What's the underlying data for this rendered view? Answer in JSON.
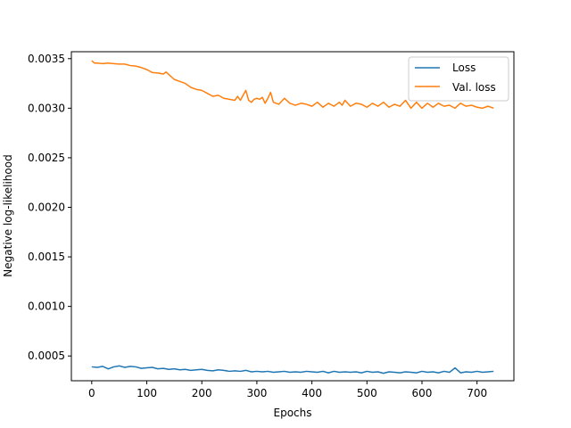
{
  "chart_data": {
    "type": "line",
    "title": "",
    "xlabel": "Epochs",
    "ylabel": "Negative log-likelihood",
    "xlim": [
      -37,
      767
    ],
    "ylim": [
      0.00025,
      0.00357
    ],
    "xticks": [
      0,
      100,
      200,
      300,
      400,
      500,
      600,
      700
    ],
    "yticks": [
      0.0005,
      0.001,
      0.0015,
      0.002,
      0.0025,
      0.003,
      0.0035
    ],
    "ytick_labels": [
      "0.0005",
      "0.0010",
      "0.0015",
      "0.0020",
      "0.0025",
      "0.0030",
      "0.0035"
    ],
    "grid": false,
    "legend_position": "top-right",
    "series": [
      {
        "name": "Loss",
        "color": "#1f77b4",
        "x": [
          0,
          10,
          20,
          30,
          40,
          50,
          60,
          70,
          80,
          90,
          100,
          110,
          120,
          130,
          140,
          150,
          160,
          170,
          180,
          190,
          200,
          210,
          220,
          230,
          240,
          250,
          260,
          270,
          280,
          290,
          300,
          310,
          320,
          330,
          340,
          350,
          360,
          370,
          380,
          390,
          400,
          410,
          420,
          430,
          440,
          450,
          460,
          470,
          480,
          490,
          500,
          510,
          520,
          530,
          540,
          550,
          560,
          570,
          580,
          590,
          600,
          610,
          620,
          630,
          640,
          650,
          660,
          670,
          680,
          690,
          700,
          710,
          720,
          730
        ],
        "values": [
          0.00039,
          0.000385,
          0.000395,
          0.00037,
          0.00039,
          0.0004,
          0.000385,
          0.000395,
          0.00039,
          0.000375,
          0.00038,
          0.000385,
          0.00037,
          0.000375,
          0.000365,
          0.00037,
          0.00036,
          0.000365,
          0.000355,
          0.00036,
          0.000365,
          0.000355,
          0.00035,
          0.00036,
          0.000355,
          0.000345,
          0.00035,
          0.000345,
          0.000355,
          0.00034,
          0.000345,
          0.00034,
          0.000345,
          0.000335,
          0.00034,
          0.000345,
          0.000335,
          0.00034,
          0.000335,
          0.000345,
          0.00034,
          0.000335,
          0.000345,
          0.00033,
          0.000345,
          0.000335,
          0.00034,
          0.000335,
          0.00034,
          0.00033,
          0.000345,
          0.000335,
          0.00034,
          0.000325,
          0.00034,
          0.000335,
          0.00033,
          0.00034,
          0.000335,
          0.00033,
          0.000345,
          0.000335,
          0.00034,
          0.00033,
          0.000345,
          0.000335,
          0.00038,
          0.00033,
          0.00034,
          0.000335,
          0.000345,
          0.000335,
          0.00034,
          0.000345
        ]
      },
      {
        "name": "Val. loss",
        "color": "#ff7f0e",
        "x": [
          0,
          5,
          10,
          20,
          30,
          40,
          50,
          60,
          70,
          80,
          90,
          100,
          110,
          120,
          130,
          135,
          140,
          150,
          160,
          170,
          180,
          190,
          200,
          210,
          220,
          230,
          240,
          250,
          260,
          265,
          270,
          275,
          280,
          285,
          290,
          295,
          300,
          305,
          310,
          315,
          320,
          325,
          330,
          340,
          350,
          360,
          370,
          380,
          390,
          400,
          410,
          420,
          430,
          440,
          450,
          455,
          460,
          470,
          480,
          490,
          500,
          510,
          520,
          530,
          540,
          550,
          560,
          570,
          580,
          590,
          600,
          610,
          620,
          630,
          640,
          650,
          660,
          670,
          680,
          690,
          700,
          710,
          720,
          730
        ],
        "values": [
          0.00348,
          0.003455,
          0.003455,
          0.00345,
          0.003455,
          0.00345,
          0.003445,
          0.003445,
          0.00343,
          0.003425,
          0.00341,
          0.00339,
          0.00336,
          0.003355,
          0.003345,
          0.003365,
          0.00334,
          0.00329,
          0.00327,
          0.00325,
          0.00321,
          0.00319,
          0.00318,
          0.00315,
          0.00312,
          0.00313,
          0.0031,
          0.00309,
          0.00308,
          0.00312,
          0.00308,
          0.00313,
          0.00318,
          0.00308,
          0.00306,
          0.00309,
          0.0031,
          0.00309,
          0.00311,
          0.00305,
          0.0031,
          0.00316,
          0.00306,
          0.00304,
          0.0031,
          0.00305,
          0.00303,
          0.00305,
          0.00304,
          0.00302,
          0.00306,
          0.00301,
          0.00305,
          0.00302,
          0.00306,
          0.00303,
          0.00308,
          0.00302,
          0.00305,
          0.00304,
          0.00301,
          0.00305,
          0.00302,
          0.00306,
          0.00301,
          0.00304,
          0.00302,
          0.00308,
          0.003,
          0.00306,
          0.003,
          0.00305,
          0.00301,
          0.00305,
          0.00302,
          0.00303,
          0.003,
          0.00305,
          0.00302,
          0.00303,
          0.00301,
          0.003,
          0.00302,
          0.003
        ]
      }
    ]
  }
}
